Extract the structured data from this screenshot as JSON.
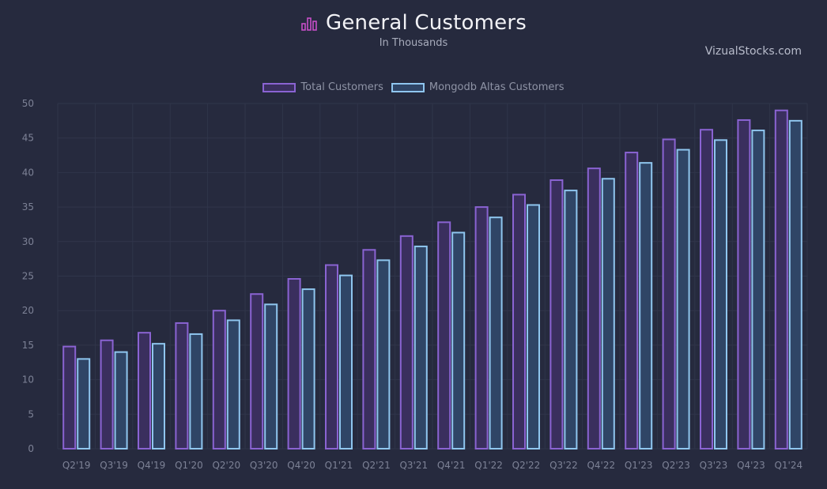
{
  "header": {
    "title": "General Customers",
    "subtitle": "In Thousands",
    "icon": "bar-chart-icon"
  },
  "watermark": "VizualStocks.com",
  "colors": {
    "background": "#262a3e",
    "grid": "#30354a",
    "total_stroke": "#8a63d2",
    "total_fill": "#3a2f5e",
    "atlas_stroke": "#8fc6ef",
    "atlas_fill": "#2f4566",
    "icon": "#c64fc8"
  },
  "chart_data": {
    "type": "bar",
    "title": "General Customers",
    "subtitle": "In Thousands",
    "xlabel": "",
    "ylabel": "",
    "ylim": [
      0,
      50
    ],
    "yticks": [
      0,
      5,
      10,
      15,
      20,
      25,
      30,
      35,
      40,
      45,
      50
    ],
    "grid": true,
    "legend_position": "top-center",
    "categories": [
      "Q2'19",
      "Q3'19",
      "Q4'19",
      "Q1'20",
      "Q2'20",
      "Q3'20",
      "Q4'20",
      "Q1'21",
      "Q2'21",
      "Q3'21",
      "Q4'21",
      "Q1'22",
      "Q2'22",
      "Q3'22",
      "Q4'22",
      "Q1'23",
      "Q2'23",
      "Q3'23",
      "Q4'23",
      "Q1'24"
    ],
    "series": [
      {
        "name": "Total Customers",
        "values": [
          14.8,
          15.7,
          16.8,
          18.2,
          20.0,
          22.4,
          24.6,
          26.6,
          28.8,
          30.8,
          32.8,
          35.0,
          36.8,
          38.9,
          40.6,
          42.9,
          44.8,
          46.2,
          47.6,
          49.0
        ]
      },
      {
        "name": "Mongodb Altas Customers",
        "values": [
          13.0,
          14.0,
          15.2,
          16.6,
          18.6,
          20.9,
          23.1,
          25.1,
          27.3,
          29.3,
          31.3,
          33.5,
          35.3,
          37.4,
          39.1,
          41.4,
          43.3,
          44.7,
          46.1,
          47.5
        ]
      }
    ]
  }
}
